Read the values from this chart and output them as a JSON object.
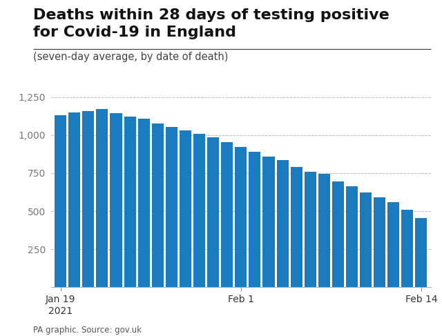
{
  "title_line1": "Deaths within 28 days of testing positive",
  "title_line2": "for Covid-19 in England",
  "subtitle": "(seven-day average, by date of death)",
  "source": "PA graphic. Source: gov.uk",
  "bar_color": "#1a7bbf",
  "background_color": "#ffffff",
  "values": [
    1130,
    1150,
    1160,
    1170,
    1145,
    1120,
    1110,
    1075,
    1055,
    1030,
    1010,
    985,
    955,
    920,
    890,
    860,
    835,
    790,
    760,
    745,
    695,
    665,
    625,
    590,
    560,
    510,
    455
  ],
  "n_bars": 27,
  "xtick_positions": [
    0,
    13,
    26
  ],
  "xtick_labels": [
    "Jan 19\n2021",
    "Feb 1",
    "Feb 14"
  ],
  "yticks": [
    250,
    500,
    750,
    1000,
    1250
  ],
  "ylim": [
    0,
    1380
  ],
  "grid_color": "#bbbbbb",
  "title_fontsize": 16,
  "subtitle_fontsize": 10.5,
  "source_fontsize": 8.5,
  "tick_fontsize": 10
}
